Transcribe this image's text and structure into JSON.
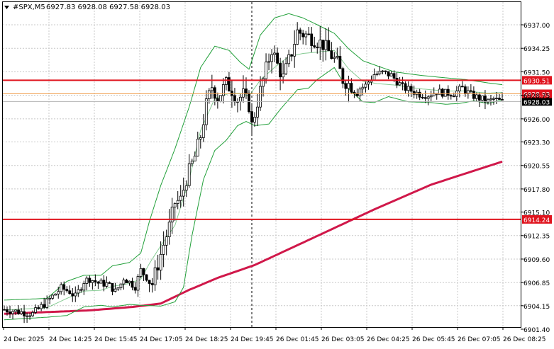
{
  "header": {
    "symbol": "#SPX,M5",
    "ohlc": "6927.83 6928.08 6927.58 6928.03"
  },
  "colors": {
    "candle": "#000000",
    "bollinger": "#22a03a",
    "moving_average": "#d0184a",
    "level_line": "#e0141e",
    "bid_line": "#b4b4b4",
    "ask_line": "#f0a050",
    "grid": "#c8c8c8"
  },
  "chart_data": {
    "type": "candlestick",
    "ylim": [
      6901.4,
      6939.5
    ],
    "y_ticks": [
      "6937.00",
      "6934.25",
      "6931.50",
      "6928.75",
      "6926.00",
      "6923.30",
      "6920.55",
      "6917.80",
      "6915.10",
      "6912.35",
      "6909.60",
      "6906.85",
      "6904.15",
      "6901.40"
    ],
    "x_ticks": [
      "24 Dec 2025",
      "24 Dec 14:25",
      "24 Dec 15:45",
      "24 Dec 17:05",
      "24 Dec 18:25",
      "24 Dec 19:45",
      "26 Dec 01:45",
      "26 Dec 03:05",
      "26 Dec 04:25",
      "26 Dec 05:45",
      "26 Dec 07:05",
      "26 Dec 08:25"
    ],
    "grid": true,
    "candle_count": 176,
    "price_path": [
      [
        0,
        6903.7
      ],
      [
        10,
        6903.2
      ],
      [
        15,
        6904.6
      ],
      [
        20,
        6906.2
      ],
      [
        23,
        6905.8
      ],
      [
        25,
        6905.2
      ],
      [
        28,
        6907.0
      ],
      [
        30,
        6907.3
      ],
      [
        33,
        6906.8
      ],
      [
        36,
        6906.7
      ],
      [
        38,
        6906.2
      ],
      [
        39,
        6905.8
      ],
      [
        41,
        6906.7
      ],
      [
        42,
        6907.4
      ],
      [
        46,
        6906.4
      ],
      [
        48,
        6908.3
      ],
      [
        52,
        6906.7
      ],
      [
        54,
        6909.0
      ],
      [
        56,
        6911.3
      ],
      [
        58,
        6913.4
      ],
      [
        60,
        6916.2
      ],
      [
        62,
        6916.5
      ],
      [
        64,
        6919.0
      ],
      [
        67,
        6921.6
      ],
      [
        69,
        6924.0
      ],
      [
        71,
        6927.6
      ],
      [
        73,
        6929.8
      ],
      [
        75,
        6928.5
      ],
      [
        78,
        6930.1
      ],
      [
        80,
        6929.4
      ],
      [
        82,
        6928.3
      ],
      [
        84,
        6928.8
      ],
      [
        86,
        6927.6
      ],
      [
        87,
        6925.2
      ],
      [
        89,
        6928.0
      ],
      [
        92,
        6931.8
      ],
      [
        94,
        6934.2
      ],
      [
        96,
        6932.3
      ],
      [
        98,
        6930.8
      ],
      [
        101,
        6933.8
      ],
      [
        103,
        6936.2
      ],
      [
        106,
        6935.8
      ],
      [
        109,
        6935.3
      ],
      [
        112,
        6934.7
      ],
      [
        115,
        6933.4
      ],
      [
        117,
        6932.5
      ],
      [
        119,
        6930.6
      ],
      [
        121,
        6930.1
      ],
      [
        124,
        6929.4
      ],
      [
        127,
        6929.9
      ],
      [
        130,
        6931.2
      ],
      [
        133,
        6931.4
      ],
      [
        136,
        6931.1
      ],
      [
        138,
        6930.4
      ],
      [
        140,
        6929.7
      ],
      [
        143,
        6929.3
      ],
      [
        146,
        6928.9
      ],
      [
        149,
        6928.8
      ],
      [
        152,
        6929.2
      ],
      [
        155,
        6929.0
      ],
      [
        158,
        6929.0
      ],
      [
        161,
        6929.6
      ],
      [
        164,
        6928.8
      ],
      [
        167,
        6928.4
      ],
      [
        170,
        6928.0
      ],
      [
        172,
        6928.3
      ],
      [
        175,
        6928.0
      ]
    ],
    "moving_average": [
      [
        0,
        6903.2
      ],
      [
        30,
        6903.6
      ],
      [
        45,
        6904.0
      ],
      [
        55,
        6904.4
      ],
      [
        65,
        6906.0
      ],
      [
        75,
        6907.4
      ],
      [
        88,
        6908.9
      ],
      [
        110,
        6912.3
      ],
      [
        130,
        6915.4
      ],
      [
        150,
        6918.3
      ],
      [
        175,
        6921.0
      ]
    ],
    "bollinger_upper": [
      [
        0,
        6904.8
      ],
      [
        15,
        6905.0
      ],
      [
        22,
        6907.0
      ],
      [
        28,
        6907.7
      ],
      [
        34,
        6907.7
      ],
      [
        38,
        6908.8
      ],
      [
        44,
        6909.2
      ],
      [
        48,
        6910.3
      ],
      [
        51,
        6914.0
      ],
      [
        55,
        6918.2
      ],
      [
        60,
        6922.5
      ],
      [
        65,
        6927.4
      ],
      [
        69,
        6932.0
      ],
      [
        74,
        6934.5
      ],
      [
        79,
        6934.0
      ],
      [
        83,
        6932.6
      ],
      [
        86,
        6931.8
      ],
      [
        90,
        6935.8
      ],
      [
        95,
        6937.8
      ],
      [
        100,
        6938.3
      ],
      [
        105,
        6937.8
      ],
      [
        110,
        6937.0
      ],
      [
        116,
        6936.0
      ],
      [
        121,
        6934.2
      ],
      [
        126,
        6932.8
      ],
      [
        131,
        6932.2
      ],
      [
        137,
        6931.5
      ],
      [
        146,
        6931.1
      ],
      [
        155,
        6930.8
      ],
      [
        162,
        6930.6
      ],
      [
        170,
        6930.2
      ],
      [
        175,
        6930.0
      ]
    ],
    "bollinger_lower": [
      [
        0,
        6902.5
      ],
      [
        15,
        6902.8
      ],
      [
        22,
        6903.0
      ],
      [
        28,
        6904.0
      ],
      [
        34,
        6904.2
      ],
      [
        38,
        6904.0
      ],
      [
        44,
        6904.3
      ],
      [
        48,
        6904.2
      ],
      [
        55,
        6904.1
      ],
      [
        60,
        6904.6
      ],
      [
        63,
        6906.3
      ],
      [
        66,
        6912.4
      ],
      [
        70,
        6918.9
      ],
      [
        74,
        6922.3
      ],
      [
        78,
        6923.5
      ],
      [
        82,
        6925.2
      ],
      [
        85,
        6925.7
      ],
      [
        88,
        6925.2
      ],
      [
        93,
        6925.4
      ],
      [
        97,
        6927.1
      ],
      [
        103,
        6929.4
      ],
      [
        107,
        6929.6
      ],
      [
        110,
        6930.6
      ],
      [
        116,
        6932.0
      ],
      [
        120,
        6929.8
      ],
      [
        126,
        6928.0
      ],
      [
        130,
        6927.9
      ],
      [
        135,
        6928.6
      ],
      [
        142,
        6928.0
      ],
      [
        150,
        6927.9
      ],
      [
        155,
        6927.7
      ],
      [
        160,
        6927.8
      ],
      [
        165,
        6928.1
      ],
      [
        170,
        6927.8
      ],
      [
        175,
        6928.2
      ]
    ],
    "levels": [
      {
        "label": "6930.51",
        "price": 6930.51
      },
      {
        "label": "6914.24",
        "price": 6914.24
      }
    ],
    "ask_label": "6928.93",
    "ask_price": 6928.93,
    "bid_label": "6928.03",
    "bid_price": 6928.03,
    "period_separator_candle": 87
  }
}
